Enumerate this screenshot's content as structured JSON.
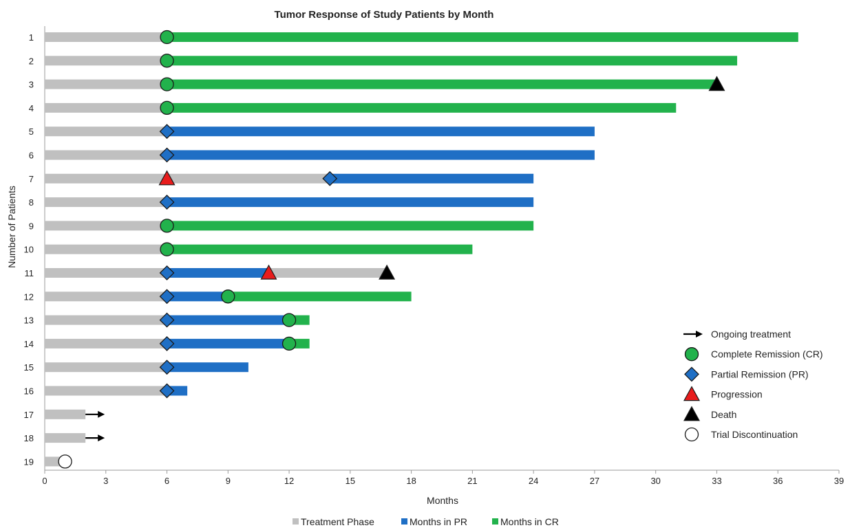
{
  "chart_data": {
    "type": "bar",
    "orientation": "horizontal",
    "stacked": true,
    "title": "Tumor Response of Study Patients by Month",
    "xlabel": "Months",
    "ylabel": "Number of Patients",
    "xlim": [
      0,
      39
    ],
    "xticks": [
      0,
      3,
      6,
      9,
      12,
      15,
      18,
      21,
      24,
      27,
      30,
      33,
      36,
      39
    ],
    "colors": {
      "treatment": "#c0c0c0",
      "pr": "#1f6fc5",
      "cr": "#22b24c",
      "progression": "#e81c1c",
      "death": "#000000",
      "discontinuation": "#ffffff"
    },
    "patients": [
      {
        "label": "1",
        "segments": [
          {
            "phase": "treatment",
            "start": 0,
            "end": 6
          },
          {
            "phase": "cr",
            "start": 6,
            "end": 37
          }
        ],
        "markers": [
          {
            "type": "cr",
            "x": 6
          }
        ]
      },
      {
        "label": "2",
        "segments": [
          {
            "phase": "treatment",
            "start": 0,
            "end": 6
          },
          {
            "phase": "cr",
            "start": 6,
            "end": 34
          }
        ],
        "markers": [
          {
            "type": "cr",
            "x": 6
          }
        ]
      },
      {
        "label": "3",
        "segments": [
          {
            "phase": "treatment",
            "start": 0,
            "end": 6
          },
          {
            "phase": "cr",
            "start": 6,
            "end": 33
          }
        ],
        "markers": [
          {
            "type": "cr",
            "x": 6
          },
          {
            "type": "death",
            "x": 33
          }
        ]
      },
      {
        "label": "4",
        "segments": [
          {
            "phase": "treatment",
            "start": 0,
            "end": 6
          },
          {
            "phase": "cr",
            "start": 6,
            "end": 31
          }
        ],
        "markers": [
          {
            "type": "cr",
            "x": 6
          }
        ]
      },
      {
        "label": "5",
        "segments": [
          {
            "phase": "treatment",
            "start": 0,
            "end": 6
          },
          {
            "phase": "pr",
            "start": 6,
            "end": 27
          }
        ],
        "markers": [
          {
            "type": "pr",
            "x": 6
          }
        ]
      },
      {
        "label": "6",
        "segments": [
          {
            "phase": "treatment",
            "start": 0,
            "end": 6
          },
          {
            "phase": "pr",
            "start": 6,
            "end": 27
          }
        ],
        "markers": [
          {
            "type": "pr",
            "x": 6
          }
        ]
      },
      {
        "label": "7",
        "segments": [
          {
            "phase": "treatment",
            "start": 0,
            "end": 14
          },
          {
            "phase": "pr",
            "start": 14,
            "end": 24
          }
        ],
        "markers": [
          {
            "type": "progression",
            "x": 6
          },
          {
            "type": "pr",
            "x": 14
          }
        ]
      },
      {
        "label": "8",
        "segments": [
          {
            "phase": "treatment",
            "start": 0,
            "end": 6
          },
          {
            "phase": "pr",
            "start": 6,
            "end": 24
          }
        ],
        "markers": [
          {
            "type": "pr",
            "x": 6
          }
        ]
      },
      {
        "label": "9",
        "segments": [
          {
            "phase": "treatment",
            "start": 0,
            "end": 6
          },
          {
            "phase": "cr",
            "start": 6,
            "end": 24
          }
        ],
        "markers": [
          {
            "type": "cr",
            "x": 6
          }
        ]
      },
      {
        "label": "10",
        "segments": [
          {
            "phase": "treatment",
            "start": 0,
            "end": 6
          },
          {
            "phase": "cr",
            "start": 6,
            "end": 21
          }
        ],
        "markers": [
          {
            "type": "cr",
            "x": 6
          }
        ]
      },
      {
        "label": "11",
        "segments": [
          {
            "phase": "treatment",
            "start": 0,
            "end": 6
          },
          {
            "phase": "pr",
            "start": 6,
            "end": 11
          },
          {
            "phase": "treatment",
            "start": 11,
            "end": 16.8
          }
        ],
        "markers": [
          {
            "type": "pr",
            "x": 6
          },
          {
            "type": "progression",
            "x": 11
          },
          {
            "type": "death",
            "x": 16.8
          }
        ]
      },
      {
        "label": "12",
        "segments": [
          {
            "phase": "treatment",
            "start": 0,
            "end": 6
          },
          {
            "phase": "pr",
            "start": 6,
            "end": 9
          },
          {
            "phase": "cr",
            "start": 9,
            "end": 18
          }
        ],
        "markers": [
          {
            "type": "pr",
            "x": 6
          },
          {
            "type": "cr",
            "x": 9
          }
        ]
      },
      {
        "label": "13",
        "segments": [
          {
            "phase": "treatment",
            "start": 0,
            "end": 6
          },
          {
            "phase": "pr",
            "start": 6,
            "end": 12
          },
          {
            "phase": "cr",
            "start": 12,
            "end": 13
          }
        ],
        "markers": [
          {
            "type": "pr",
            "x": 6
          },
          {
            "type": "cr",
            "x": 12
          }
        ]
      },
      {
        "label": "14",
        "segments": [
          {
            "phase": "treatment",
            "start": 0,
            "end": 6
          },
          {
            "phase": "pr",
            "start": 6,
            "end": 12
          },
          {
            "phase": "cr",
            "start": 12,
            "end": 13
          }
        ],
        "markers": [
          {
            "type": "pr",
            "x": 6
          },
          {
            "type": "cr",
            "x": 12
          }
        ]
      },
      {
        "label": "15",
        "segments": [
          {
            "phase": "treatment",
            "start": 0,
            "end": 6
          },
          {
            "phase": "pr",
            "start": 6,
            "end": 10
          }
        ],
        "markers": [
          {
            "type": "pr",
            "x": 6
          }
        ]
      },
      {
        "label": "16",
        "segments": [
          {
            "phase": "treatment",
            "start": 0,
            "end": 6
          },
          {
            "phase": "pr",
            "start": 6,
            "end": 7
          }
        ],
        "markers": [
          {
            "type": "pr",
            "x": 6
          }
        ]
      },
      {
        "label": "17",
        "segments": [
          {
            "phase": "treatment",
            "start": 0,
            "end": 2
          }
        ],
        "markers": [
          {
            "type": "ongoing",
            "x": 2
          }
        ]
      },
      {
        "label": "18",
        "segments": [
          {
            "phase": "treatment",
            "start": 0,
            "end": 2
          }
        ],
        "markers": [
          {
            "type": "ongoing",
            "x": 2
          }
        ]
      },
      {
        "label": "19",
        "segments": [
          {
            "phase": "treatment",
            "start": 0,
            "end": 1
          }
        ],
        "markers": [
          {
            "type": "discontinuation",
            "x": 1
          }
        ]
      }
    ],
    "marker_legend": [
      {
        "type": "ongoing",
        "label": "Ongoing treatment"
      },
      {
        "type": "cr",
        "label": "Complete Remission (CR)"
      },
      {
        "type": "pr",
        "label": "Partial Remission (PR)"
      },
      {
        "type": "progression",
        "label": "Progression"
      },
      {
        "type": "death",
        "label": "Death"
      },
      {
        "type": "discontinuation",
        "label": "Trial Discontinuation"
      }
    ],
    "series_legend": [
      {
        "phase": "treatment",
        "label": "Treatment Phase"
      },
      {
        "phase": "pr",
        "label": "Months in PR"
      },
      {
        "phase": "cr",
        "label": "Months in CR"
      }
    ],
    "legend_position": "right"
  }
}
